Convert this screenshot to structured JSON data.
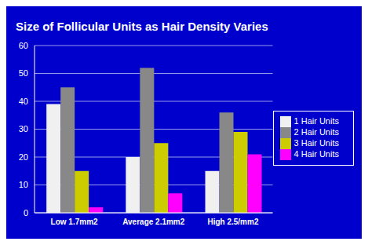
{
  "chart_data": {
    "type": "bar",
    "title": "Size of Follicular Units as Hair Density Varies",
    "categories": [
      "Low 1.7mm2",
      "Average 2.1mm2",
      "High 2.5/mm2"
    ],
    "series": [
      {
        "name": "1 Hair Units",
        "color": "#F0F0F0",
        "values": [
          39,
          20,
          15
        ]
      },
      {
        "name": "2 Hair Units",
        "color": "#888888",
        "values": [
          45,
          52,
          36
        ]
      },
      {
        "name": "3 Hair Units",
        "color": "#CCCC00",
        "values": [
          15,
          25,
          29
        ]
      },
      {
        "name": "4 Hair Units",
        "color": "#FF00FF",
        "values": [
          2,
          7,
          21
        ]
      }
    ],
    "ylim": [
      0,
      60
    ],
    "yticks": [
      0,
      10,
      20,
      30,
      40,
      50,
      60
    ],
    "grid": true,
    "legend": "right"
  }
}
